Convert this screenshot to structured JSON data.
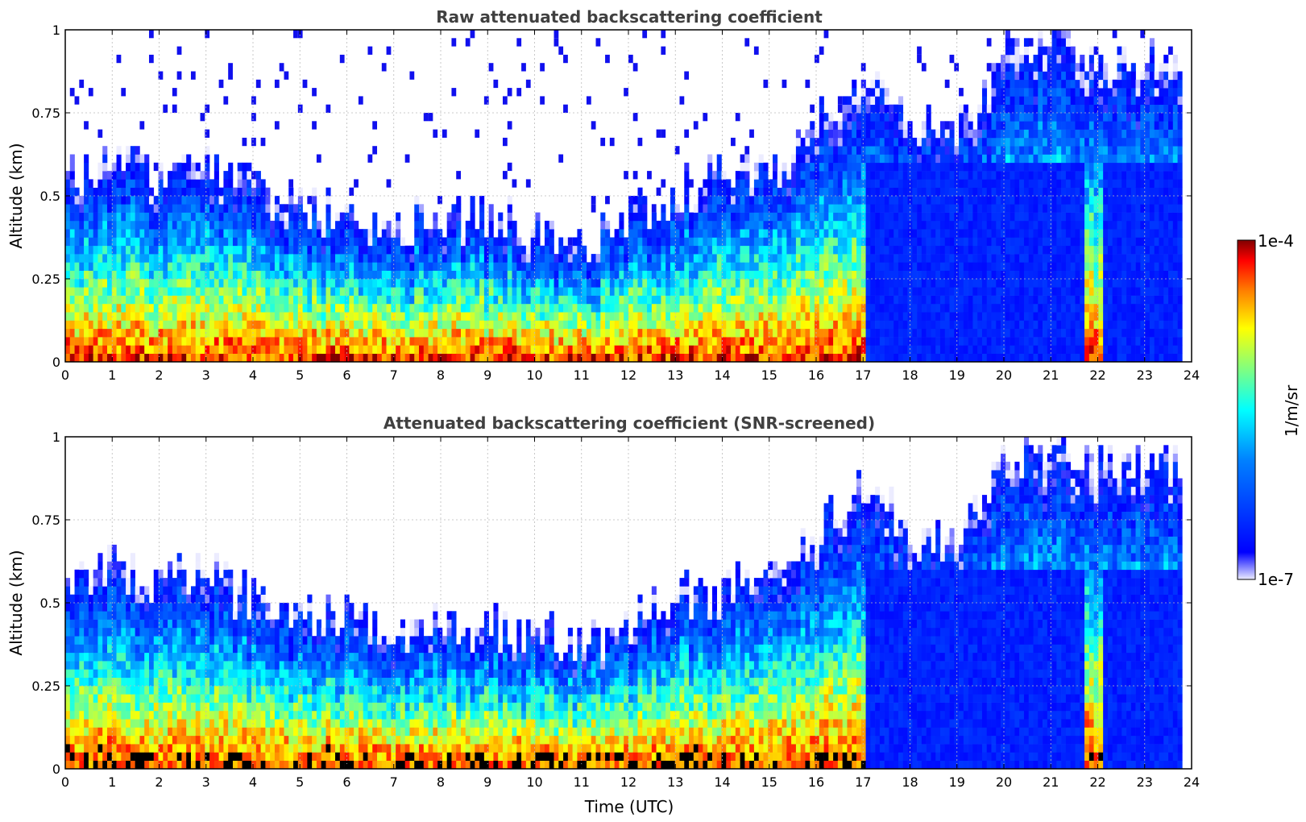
{
  "chart_data": [
    {
      "type": "heatmap",
      "title": "Raw attenuated backscattering coefficient",
      "xlabel": "",
      "ylabel": "Altitude (km)",
      "xlim": [
        0,
        24
      ],
      "ylim": [
        0,
        1
      ],
      "xticks": [
        "0",
        "1",
        "2",
        "3",
        "4",
        "5",
        "6",
        "7",
        "8",
        "9",
        "10",
        "11",
        "12",
        "13",
        "14",
        "15",
        "16",
        "17",
        "18",
        "19",
        "20",
        "21",
        "22",
        "23",
        "24"
      ],
      "yticks": [
        "0",
        "0.25",
        "0.5",
        "0.75",
        "1"
      ],
      "grid": true,
      "screened": false,
      "signal_layer_top_km": [
        [
          0,
          0.55
        ],
        [
          1,
          0.6
        ],
        [
          2,
          0.55
        ],
        [
          3,
          0.6
        ],
        [
          3.5,
          0.55
        ],
        [
          4,
          0.5
        ],
        [
          5,
          0.45
        ],
        [
          6,
          0.45
        ],
        [
          7,
          0.4
        ],
        [
          8,
          0.42
        ],
        [
          9,
          0.42
        ],
        [
          10,
          0.4
        ],
        [
          11,
          0.35
        ],
        [
          12,
          0.42
        ],
        [
          13,
          0.5
        ],
        [
          14,
          0.55
        ],
        [
          15,
          0.6
        ],
        [
          16,
          0.7
        ],
        [
          17,
          0.85
        ],
        [
          18,
          0.7
        ],
        [
          19,
          0.7
        ],
        [
          20,
          0.9
        ],
        [
          21,
          1.0
        ],
        [
          22,
          0.9
        ],
        [
          23,
          0.9
        ],
        [
          23.8,
          0.9
        ]
      ]
    },
    {
      "type": "heatmap",
      "title": "Attenuated backscattering coefficient (SNR-screened)",
      "xlabel": "Time (UTC)",
      "ylabel": "Altitude (km)",
      "xlim": [
        0,
        24
      ],
      "ylim": [
        0,
        1
      ],
      "xticks": [
        "0",
        "1",
        "2",
        "3",
        "4",
        "5",
        "6",
        "7",
        "8",
        "9",
        "10",
        "11",
        "12",
        "13",
        "14",
        "15",
        "16",
        "17",
        "18",
        "19",
        "20",
        "21",
        "22",
        "23",
        "24"
      ],
      "yticks": [
        "0",
        "0.25",
        "0.5",
        "0.75",
        "1"
      ],
      "grid": true,
      "screened": true,
      "signal_layer_top_km": [
        [
          0,
          0.55
        ],
        [
          1,
          0.6
        ],
        [
          2,
          0.55
        ],
        [
          3,
          0.6
        ],
        [
          3.5,
          0.55
        ],
        [
          4,
          0.5
        ],
        [
          5,
          0.45
        ],
        [
          6,
          0.45
        ],
        [
          7,
          0.4
        ],
        [
          8,
          0.42
        ],
        [
          9,
          0.42
        ],
        [
          10,
          0.4
        ],
        [
          11,
          0.35
        ],
        [
          12,
          0.42
        ],
        [
          13,
          0.5
        ],
        [
          14,
          0.55
        ],
        [
          15,
          0.6
        ],
        [
          16,
          0.7
        ],
        [
          17,
          0.85
        ],
        [
          18,
          0.7
        ],
        [
          19,
          0.7
        ],
        [
          20,
          0.9
        ],
        [
          21,
          1.0
        ],
        [
          22,
          0.9
        ],
        [
          23,
          0.9
        ],
        [
          23.8,
          0.9
        ]
      ]
    }
  ],
  "colorbar": {
    "max_label": "1e-4",
    "min_label": "1e-7",
    "unit_label": "1/m/sr",
    "colormap": "jet",
    "colors": [
      "#ececff",
      "#0000ff",
      "#0080ff",
      "#00ffff",
      "#80ff80",
      "#ffff00",
      "#ff8000",
      "#ff0000",
      "#800000"
    ]
  }
}
